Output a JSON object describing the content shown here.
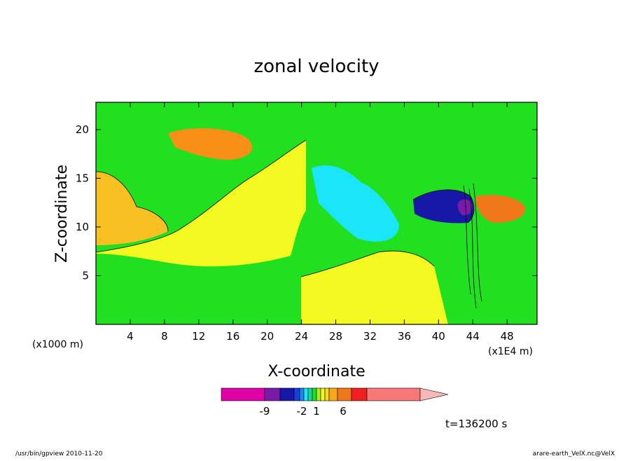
{
  "chart_data": {
    "type": "heatmap",
    "title": "zonal velocity",
    "xlabel": "X-coordinate",
    "ylabel": "Z-coordinate",
    "x_unit_label": "(x1000 m)",
    "x_scale_label": "(x1E4 m)",
    "x_ticks": [
      4,
      8,
      12,
      16,
      20,
      24,
      28,
      32,
      36,
      40,
      44,
      48
    ],
    "y_ticks": [
      5,
      10,
      15,
      20
    ],
    "xlim": [
      0,
      51.5
    ],
    "ylim": [
      0,
      22.8
    ],
    "time_label": "t=136200 s",
    "footer_left": "/usr/bin/gpview   2010-11-20",
    "footer_right": "arare-earth_VelX.nc@VelX",
    "colorbar": {
      "colors": [
        "#e000a8",
        "#7a1aa8",
        "#1818a8",
        "#1a3ee0",
        "#1a86f0",
        "#19e6f8",
        "#14d6a0",
        "#20e020",
        "#a8ee20",
        "#f2f820",
        "#f8d820",
        "#f8a818",
        "#f07818",
        "#f02020",
        "#f87878",
        "#f8b8b8"
      ],
      "tick_labels": [
        "-9",
        "-2",
        "1",
        "6"
      ]
    },
    "regions": [
      {
        "name": "green-background",
        "color": "#20e020"
      },
      {
        "name": "yellow-left",
        "color": "#f2f820"
      },
      {
        "name": "yellow-right",
        "color": "#f2f820"
      },
      {
        "name": "orange-left",
        "color": "#f8c020"
      },
      {
        "name": "orange-top",
        "color": "#f89018"
      },
      {
        "name": "cyan-right",
        "color": "#19e6f8"
      },
      {
        "name": "blue-jet",
        "color": "#1818a8"
      },
      {
        "name": "red-jet",
        "color": "#f07818"
      },
      {
        "name": "purple-core",
        "color": "#7a1aa8"
      }
    ]
  }
}
